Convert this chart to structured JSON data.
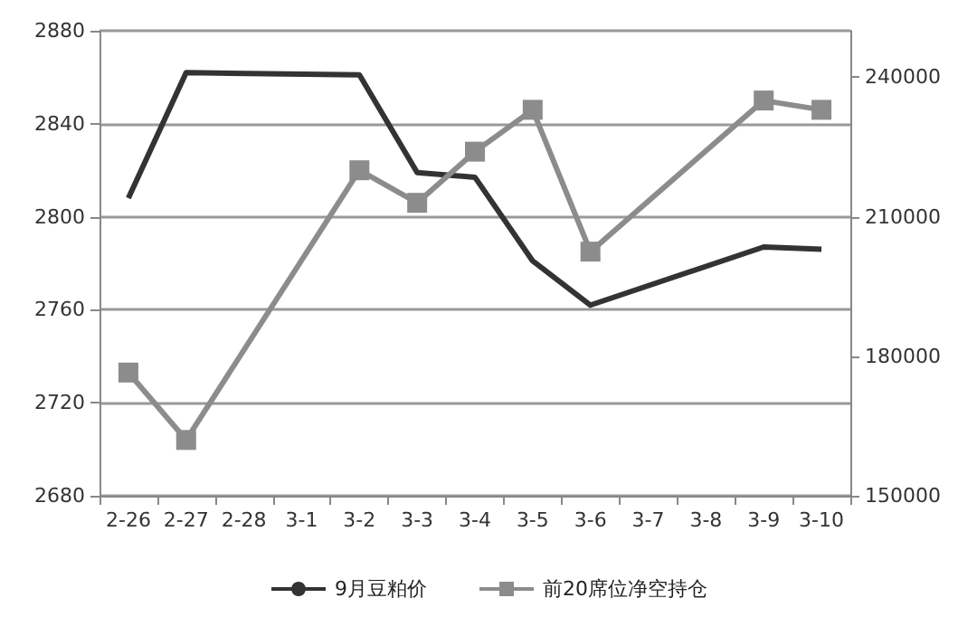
{
  "chart_data": {
    "type": "line",
    "categories": [
      "2-26",
      "2-27",
      "2-28",
      "3-1",
      "3-2",
      "3-3",
      "3-4",
      "3-5",
      "3-6",
      "3-7",
      "3-8",
      "3-9",
      "3-10"
    ],
    "series": [
      {
        "name": "9月豆粕价",
        "color": "#333333",
        "marker": "none",
        "values": [
          2808,
          2862,
          null,
          null,
          2861,
          2819,
          2817,
          2781,
          2762,
          null,
          null,
          2787,
          2786
        ]
      },
      {
        "name": "前20席位净空持仓",
        "color": "#8c8c8c",
        "marker": "square",
        "axis": "y2",
        "values": [
          176500,
          162000,
          null,
          null,
          220000,
          213000,
          224000,
          233000,
          202500,
          null,
          null,
          235000,
          233000
        ]
      }
    ],
    "ylim": [
      2680,
      2880
    ],
    "yticks": [
      2680,
      2720,
      2760,
      2800,
      2840,
      2880
    ],
    "y2lim": [
      150000,
      250000
    ],
    "y2ticks": [
      150000,
      180000,
      210000,
      240000
    ],
    "grid": "y",
    "legend": "bottom"
  }
}
